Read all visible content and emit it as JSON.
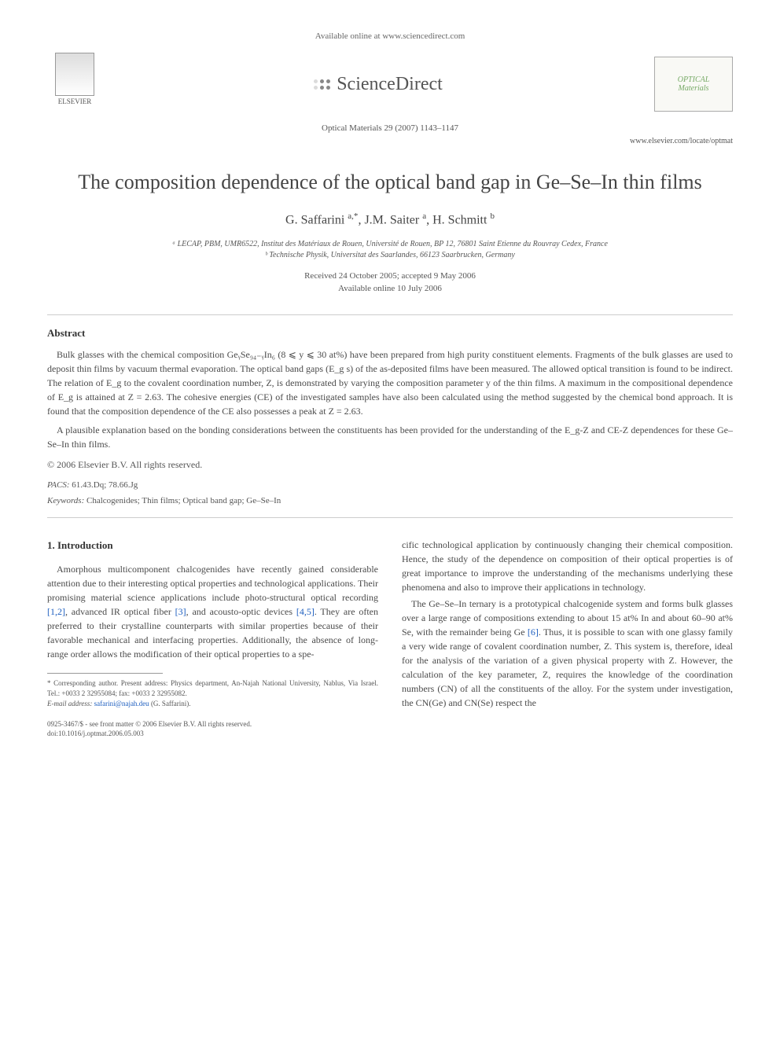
{
  "header": {
    "available_online": "Available online at www.sciencedirect.com",
    "publisher_name": "ELSEVIER",
    "platform_name": "ScienceDirect",
    "journal_name_line1": "OPTICAL",
    "journal_name_line2": "Materials",
    "journal_ref": "Optical Materials 29 (2007) 1143–1147",
    "journal_url": "www.elsevier.com/locate/optmat"
  },
  "title": "The composition dependence of the optical band gap in Ge–Se–In thin films",
  "authors_html": "G. Saffarini <sup>a,*</sup>, J.M. Saiter <sup>a</sup>, H. Schmitt <sup>b</sup>",
  "affiliations": [
    "ᵃ LECAP, PBM, UMR6522, Institut des Matériaux de Rouen, Université de Rouen, BP 12, 76801 Saint Etienne du Rouvray Cedex, France",
    "ᵇ Technische Physik, Universitat des Saarlandes, 66123 Saarbrucken, Germany"
  ],
  "dates": {
    "received_accepted": "Received 24 October 2005; accepted 9 May 2006",
    "online": "Available online 10 July 2006"
  },
  "abstract": {
    "heading": "Abstract",
    "p1": "Bulk glasses with the chemical composition GeᵧSe₉₄₋ᵧIn₆ (8 ⩽ y ⩽ 30 at%) have been prepared from high purity constituent elements. Fragments of the bulk glasses are used to deposit thin films by vacuum thermal evaporation. The optical band gaps (E_g s) of the as-deposited films have been measured. The allowed optical transition is found to be indirect. The relation of E_g to the covalent coordination number, Z, is demonstrated by varying the composition parameter y of the thin films. A maximum in the compositional dependence of E_g is attained at Z = 2.63. The cohesive energies (CE) of the investigated samples have also been calculated using the method suggested by the chemical bond approach. It is found that the composition dependence of the CE also possesses a peak at Z = 2.63.",
    "p2": "A plausible explanation based on the bonding considerations between the constituents has been provided for the understanding of the E_g-Z and CE-Z dependences for these Ge–Se–In thin films.",
    "copyright": "© 2006 Elsevier B.V. All rights reserved."
  },
  "pacs": {
    "label": "PACS:",
    "value": "61.43.Dq; 78.66.Jg"
  },
  "keywords": {
    "label": "Keywords:",
    "value": "Chalcogenides; Thin films; Optical band gap; Ge–Se–In"
  },
  "body": {
    "heading": "1. Introduction",
    "col1_p1_pre": "Amorphous multicomponent chalcogenides have recently gained considerable attention due to their interesting optical properties and technological applications. Their promising material science applications include photo-structural optical recording ",
    "col1_ref1": "[1,2]",
    "col1_p1_mid1": ", advanced IR optical fiber ",
    "col1_ref2": "[3]",
    "col1_p1_mid2": ", and acousto-optic devices ",
    "col1_ref3": "[4,5]",
    "col1_p1_post": ". They are often preferred to their crystalline counterparts with similar properties because of their favorable mechanical and interfacing properties. Additionally, the absence of long-range order allows the modification of their optical properties to a spe-",
    "col2_p1": "cific technological application by continuously changing their chemical composition. Hence, the study of the dependence on composition of their optical properties is of great importance to improve the understanding of the mechanisms underlying these phenomena and also to improve their applications in technology.",
    "col2_p2_pre": "The Ge–Se–In ternary is a prototypical chalcogenide system and forms bulk glasses over a large range of compositions extending to about 15 at% In and about 60–90 at% Se, with the remainder being Ge ",
    "col2_ref1": "[6]",
    "col2_p2_post": ". Thus, it is possible to scan with one glassy family a very wide range of covalent coordination number, Z. This system is, therefore, ideal for the analysis of the variation of a given physical property with Z. However, the calculation of the key parameter, Z, requires the knowledge of the coordination numbers (CN) of all the constituents of the alloy. For the system under investigation, the CN(Ge) and CN(Se) respect the"
  },
  "footnote": {
    "corresponding": "* Corresponding author. Present address: Physics department, An-Najah National University, Nablus, Via Israel. Tel.: +0033 2 32955084; fax: +0033 2 32955082.",
    "email_label": "E-mail address:",
    "email": "safarini@najah.deu",
    "email_author": "(G. Saffarini)."
  },
  "footer": {
    "issn_copyright": "0925-3467/$ - see front matter © 2006 Elsevier B.V. All rights reserved.",
    "doi": "doi:10.1016/j.optmat.2006.05.003"
  }
}
